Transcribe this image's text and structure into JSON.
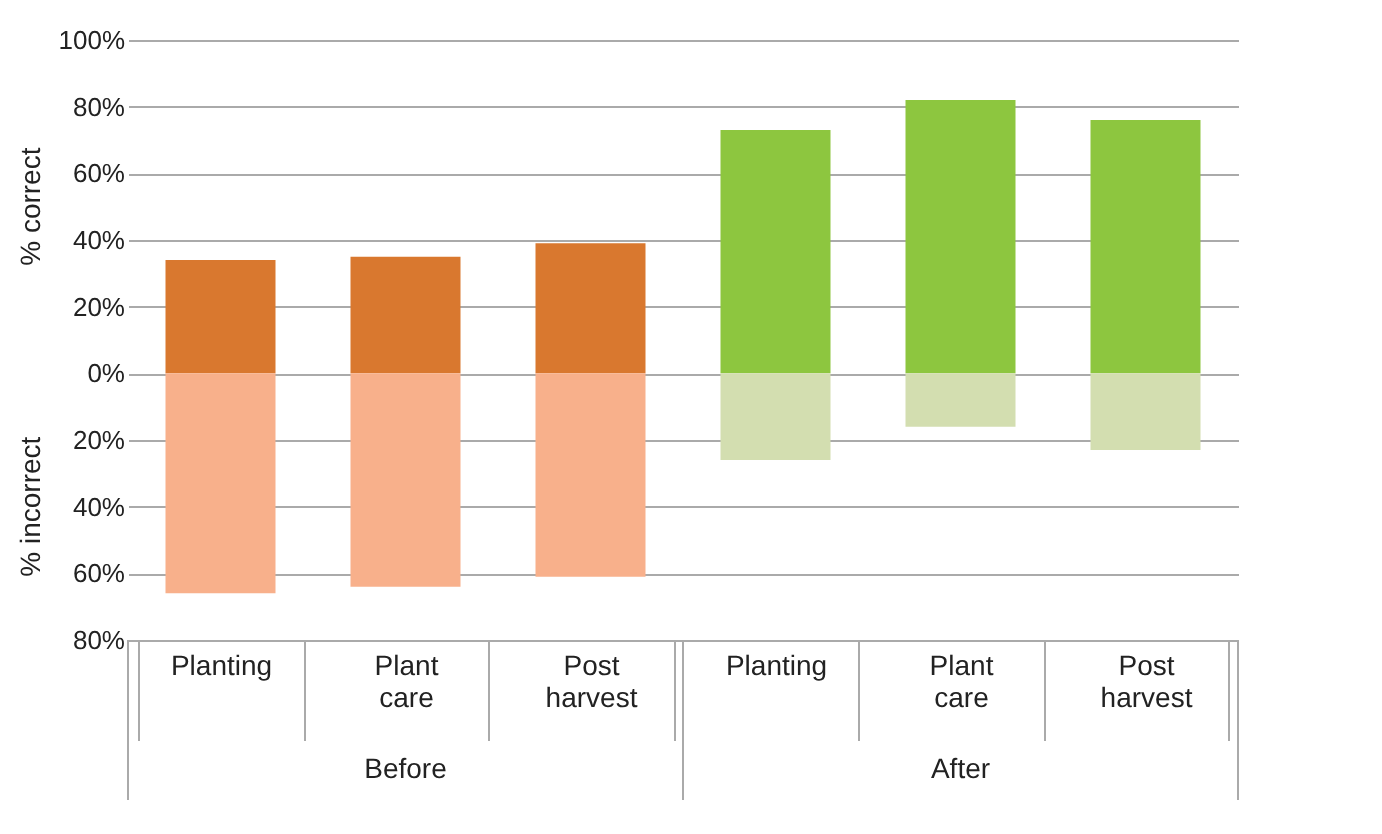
{
  "chart_data": {
    "type": "bar",
    "stacked": true,
    "categories": [
      "Planting",
      "Plant care",
      "Post harvest",
      "Planting",
      "Plant care",
      "Post harvest"
    ],
    "series": [
      {
        "color": "#d9782f",
        "values": [
          34,
          35,
          39,
          null,
          null,
          null
        ]
      },
      {
        "color": "#f8b08b",
        "values": [
          -66,
          -64,
          -61,
          null,
          null,
          null
        ]
      },
      {
        "color": "#8dc63f",
        "values": [
          null,
          null,
          null,
          73,
          82,
          76
        ]
      },
      {
        "color": "#d3deb0",
        "values": [
          null,
          null,
          null,
          -26,
          -16,
          -23
        ]
      }
    ],
    "ylim": [
      -80,
      100
    ],
    "yticks": [
      {
        "value": -80,
        "label": "80%"
      },
      {
        "value": -60,
        "label": "60%"
      },
      {
        "value": -40,
        "label": "40%"
      },
      {
        "value": -20,
        "label": "20%"
      },
      {
        "value": 0,
        "label": "0%"
      },
      {
        "value": 20,
        "label": "20%"
      },
      {
        "value": 40,
        "label": "40%"
      },
      {
        "value": 60,
        "label": "60%"
      },
      {
        "value": 80,
        "label": "80%"
      },
      {
        "value": 100,
        "label": "100%"
      }
    ],
    "ylabel": "% correct",
    "annotations": [
      "% incorrect",
      "Before",
      "After"
    ],
    "grid": "y",
    "legend": false
  }
}
